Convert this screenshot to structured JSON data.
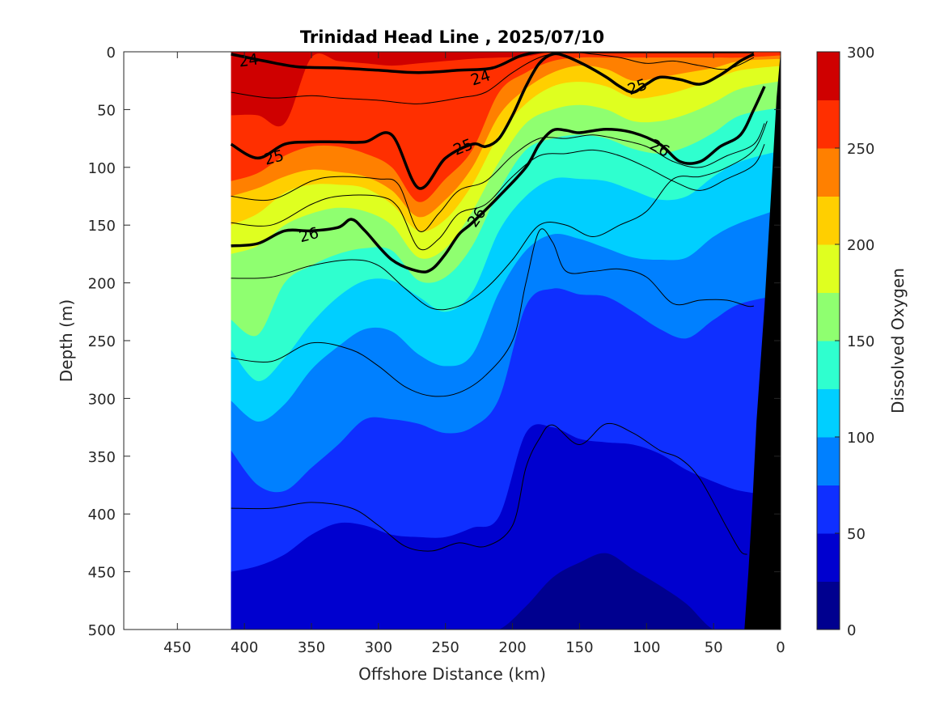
{
  "chart_data": {
    "type": "contour",
    "title": "Trinidad Head Line , 2025/07/10",
    "xlabel": "Offshore Distance (km)",
    "ylabel": "Depth (m)",
    "colorbar_label": "Dissolved Oxygen",
    "xlim": [
      490,
      0
    ],
    "ylim": [
      0,
      500
    ],
    "x_ticks": [
      450,
      400,
      350,
      300,
      250,
      200,
      150,
      100,
      50,
      0
    ],
    "y_ticks": [
      0,
      50,
      100,
      150,
      200,
      250,
      300,
      350,
      400,
      450,
      500
    ],
    "colorbar_ticks": [
      0,
      50,
      100,
      150,
      200,
      250,
      300
    ],
    "colorbar_levels": [
      0,
      25,
      50,
      75,
      100,
      125,
      150,
      175,
      200,
      225,
      250,
      275,
      300
    ],
    "colorbar_colors": [
      "#00008f",
      "#0000cf",
      "#0f2fff",
      "#0080ff",
      "#00cfff",
      "#2fffcf",
      "#8fff70",
      "#dfff20",
      "#ffcf00",
      "#ff8000",
      "#ff2f00",
      "#cf0000"
    ],
    "data_extent_km": [
      410,
      10
    ],
    "station_x": [
      410,
      390,
      370,
      350,
      330,
      310,
      290,
      270,
      250,
      230,
      210,
      190,
      170,
      150,
      130,
      110,
      90,
      70,
      50,
      30,
      10
    ],
    "oxygen_boundaries": [
      {
        "level": 275,
        "depth": [
          55,
          55,
          62,
          5,
          8,
          10,
          12,
          10,
          8,
          6,
          5,
          4,
          0,
          0,
          0,
          0,
          0,
          0,
          0,
          0,
          0
        ]
      },
      {
        "level": 250,
        "depth": [
          112,
          105,
          90,
          82,
          82,
          88,
          100,
          130,
          110,
          85,
          35,
          18,
          8,
          5,
          5,
          5,
          5,
          5,
          5,
          5,
          3
        ]
      },
      {
        "level": 225,
        "depth": [
          125,
          118,
          108,
          102,
          104,
          108,
          120,
          143,
          128,
          100,
          55,
          32,
          18,
          12,
          15,
          25,
          22,
          18,
          14,
          8,
          6
        ]
      },
      {
        "level": 200,
        "depth": [
          150,
          140,
          122,
          115,
          115,
          118,
          132,
          155,
          145,
          115,
          72,
          45,
          30,
          26,
          30,
          40,
          38,
          32,
          24,
          16,
          12
        ]
      },
      {
        "level": 175,
        "depth": [
          175,
          168,
          150,
          140,
          135,
          138,
          150,
          178,
          170,
          138,
          95,
          62,
          50,
          46,
          50,
          60,
          60,
          54,
          44,
          32,
          25
        ]
      },
      {
        "level": 150,
        "depth": [
          232,
          245,
          200,
          185,
          175,
          170,
          172,
          198,
          195,
          168,
          120,
          85,
          75,
          72,
          75,
          84,
          88,
          82,
          70,
          55,
          48
        ]
      },
      {
        "level": 125,
        "depth": [
          258,
          285,
          265,
          235,
          212,
          198,
          198,
          212,
          225,
          208,
          155,
          125,
          110,
          110,
          112,
          120,
          128,
          125,
          108,
          95,
          85
        ]
      },
      {
        "level": 100,
        "depth": [
          302,
          320,
          305,
          275,
          255,
          240,
          242,
          262,
          272,
          262,
          208,
          172,
          158,
          162,
          170,
          178,
          180,
          178,
          160,
          148,
          135
        ]
      },
      {
        "level": 75,
        "depth": [
          345,
          375,
          380,
          360,
          340,
          318,
          318,
          322,
          330,
          325,
          300,
          220,
          205,
          210,
          212,
          225,
          240,
          248,
          232,
          218,
          210
        ]
      },
      {
        "level": 50,
        "depth": [
          450,
          445,
          435,
          418,
          408,
          410,
          418,
          420,
          420,
          412,
          402,
          330,
          325,
          335,
          338,
          340,
          348,
          362,
          372,
          380,
          385
        ]
      },
      {
        "level": 25,
        "depth": [
          500,
          500,
          500,
          500,
          500,
          500,
          500,
          500,
          500,
          500,
          500,
          480,
          455,
          442,
          434,
          448,
          462,
          478,
          500,
          500,
          500
        ]
      }
    ],
    "isopycnals": [
      {
        "sigma": 24,
        "label": "24",
        "bold": true,
        "x": [
          410,
          385,
          360,
          330,
          300,
          270,
          240,
          215,
          195,
          180,
          165,
          150,
          135,
          120,
          110,
          95,
          80,
          60,
          40,
          20
        ],
        "depth": [
          2,
          8,
          13,
          14,
          16,
          18,
          16,
          14,
          4,
          0,
          0,
          0,
          0,
          0,
          0,
          0,
          0,
          0,
          0,
          0
        ]
      },
      {
        "sigma": 25,
        "label": "25",
        "bold": true,
        "x": [
          410,
          390,
          370,
          350,
          330,
          310,
          290,
          270,
          250,
          230,
          220,
          210,
          200,
          190,
          180,
          170,
          160,
          145,
          130,
          120,
          110,
          100,
          90,
          75,
          60,
          45,
          30,
          20
        ],
        "depth": [
          80,
          92,
          80,
          78,
          78,
          78,
          72,
          118,
          92,
          80,
          82,
          75,
          55,
          30,
          10,
          2,
          4,
          12,
          22,
          30,
          35,
          28,
          22,
          24,
          28,
          20,
          8,
          2
        ]
      },
      {
        "sigma": 26,
        "label": "26",
        "bold": true,
        "x": [
          410,
          390,
          370,
          350,
          330,
          320,
          310,
          290,
          270,
          260,
          250,
          240,
          230,
          210,
          190,
          180,
          170,
          160,
          150,
          130,
          110,
          90,
          75,
          60,
          45,
          30,
          20,
          12
        ],
        "depth": [
          168,
          166,
          155,
          155,
          152,
          145,
          155,
          180,
          190,
          188,
          175,
          158,
          148,
          125,
          100,
          80,
          68,
          68,
          70,
          67,
          70,
          80,
          95,
          95,
          82,
          72,
          50,
          30
        ]
      },
      {
        "sigma": 26.2,
        "label": "",
        "bold": false,
        "x": [
          410,
          380,
          350,
          320,
          300,
          280,
          260,
          240,
          220,
          200,
          180,
          160,
          140,
          120,
          100,
          80,
          60,
          40,
          20,
          10
        ],
        "depth": [
          196,
          195,
          185,
          180,
          185,
          205,
          222,
          220,
          205,
          180,
          150,
          150,
          160,
          150,
          138,
          110,
          108,
          100,
          85,
          60
        ]
      },
      {
        "sigma": 26.4,
        "label": "",
        "bold": false,
        "x": [
          410,
          380,
          350,
          320,
          300,
          280,
          260,
          240,
          220,
          200,
          190,
          180,
          170,
          160,
          140,
          120,
          100,
          80,
          60,
          40,
          25,
          20
        ],
        "depth": [
          265,
          268,
          252,
          258,
          272,
          290,
          298,
          295,
          280,
          250,
          200,
          155,
          165,
          190,
          190,
          188,
          195,
          218,
          215,
          215,
          220,
          220
        ]
      },
      {
        "sigma": 26.6,
        "label": "",
        "bold": false,
        "x": [
          410,
          380,
          350,
          320,
          300,
          280,
          260,
          240,
          220,
          200,
          190,
          180,
          170,
          150,
          130,
          110,
          90,
          75,
          60,
          40,
          30,
          25
        ],
        "depth": [
          395,
          395,
          390,
          395,
          410,
          428,
          432,
          425,
          428,
          410,
          360,
          335,
          323,
          340,
          322,
          330,
          345,
          352,
          370,
          412,
          432,
          435
        ]
      }
    ],
    "thin_upper_contours": [
      {
        "x": [
          410,
          380,
          350,
          330,
          300,
          270,
          240,
          220,
          200,
          180,
          160,
          140,
          120,
          100,
          80,
          60,
          40,
          20
        ],
        "depth": [
          35,
          40,
          38,
          40,
          42,
          45,
          40,
          35,
          18,
          5,
          0,
          2,
          5,
          10,
          8,
          12,
          15,
          5
        ]
      },
      {
        "x": [
          410,
          380,
          350,
          330,
          300,
          285,
          270,
          255,
          240,
          220,
          200,
          180,
          160,
          140,
          120,
          100,
          80,
          60,
          40,
          20,
          12
        ],
        "depth": [
          125,
          128,
          112,
          108,
          110,
          115,
          155,
          140,
          120,
          112,
          90,
          75,
          75,
          72,
          76,
          82,
          95,
          100,
          90,
          80,
          62
        ]
      },
      {
        "x": [
          410,
          380,
          350,
          330,
          300,
          285,
          270,
          255,
          240,
          220,
          200,
          180,
          160,
          140,
          120,
          100,
          80,
          60,
          40,
          20,
          12
        ],
        "depth": [
          148,
          150,
          132,
          125,
          125,
          135,
          170,
          162,
          140,
          132,
          108,
          90,
          88,
          85,
          90,
          100,
          112,
          120,
          110,
          98,
          80
        ]
      }
    ],
    "contour_label_positions": [
      {
        "text": "24",
        "x": 397,
        "depth": 7,
        "angle": -8
      },
      {
        "text": "24",
        "x": 224,
        "depth": 22,
        "angle": -18
      },
      {
        "text": "25",
        "x": 107,
        "depth": 30,
        "angle": -20
      },
      {
        "text": "25",
        "x": 378,
        "depth": 91,
        "angle": -15
      },
      {
        "text": "25",
        "x": 237,
        "depth": 82,
        "angle": -22
      },
      {
        "text": "26",
        "x": 90,
        "depth": 83,
        "angle": 28
      },
      {
        "text": "26",
        "x": 352,
        "depth": 158,
        "angle": -15
      },
      {
        "text": "26",
        "x": 227,
        "depth": 143,
        "angle": -55
      }
    ],
    "bathymetry": {
      "x": [
        0,
        3,
        6,
        9,
        12,
        15,
        18,
        21,
        24,
        27,
        0
      ],
      "depth": [
        0,
        40,
        100,
        160,
        220,
        270,
        320,
        390,
        450,
        500,
        500
      ]
    }
  }
}
